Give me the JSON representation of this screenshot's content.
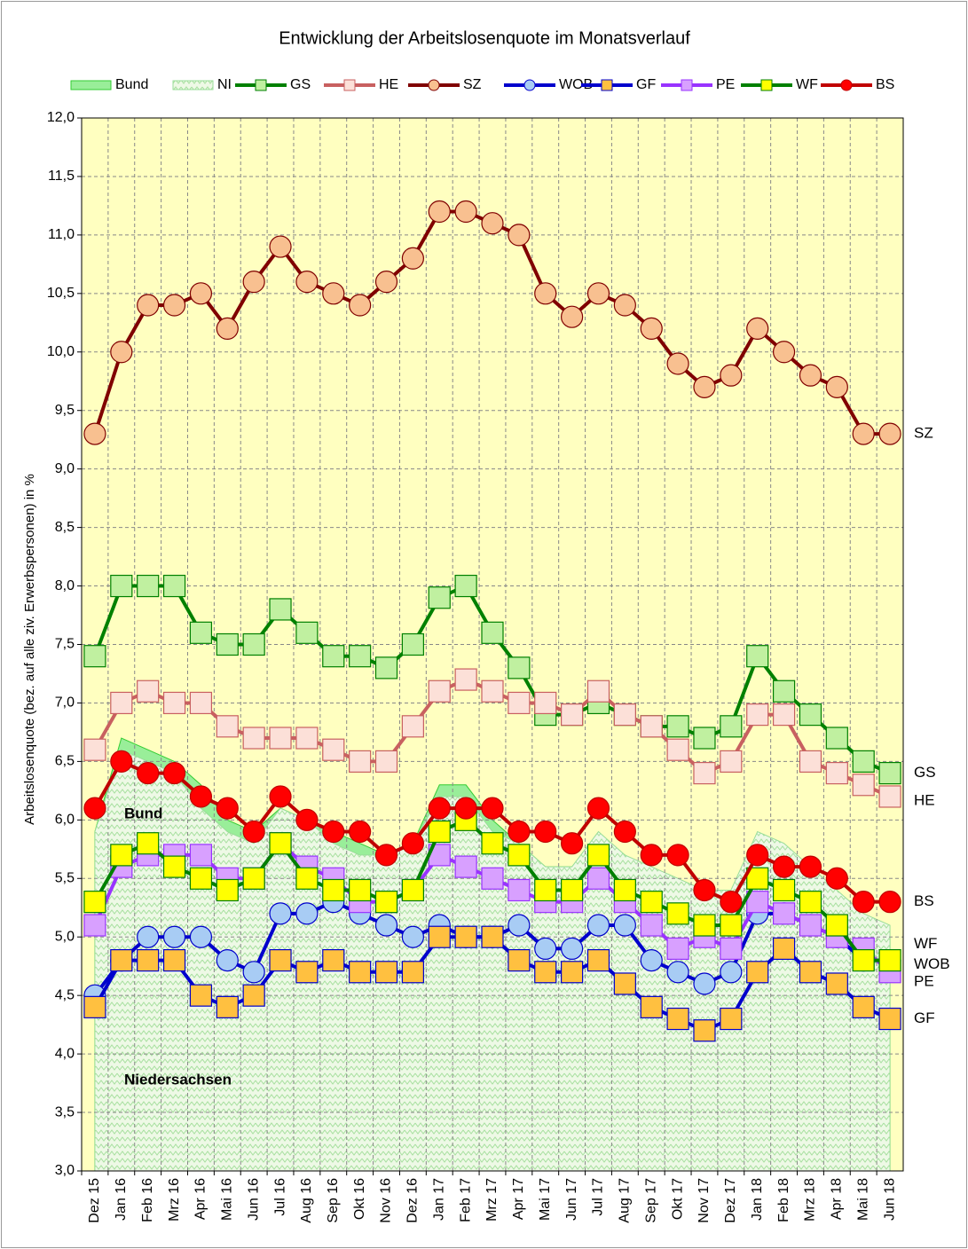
{
  "chart_data": {
    "type": "line",
    "title": "Entwicklung der Arbeitslosenquote im Monatsverlauf",
    "y_label": "Arbeitslosenquote (bez. auf alle ziv. Erwerbspersonen) in %",
    "annotations": [
      "Bund",
      "Niedersachsen"
    ],
    "categories": [
      "Dez 15",
      "Jan 16",
      "Feb 16",
      "Mrz 16",
      "Apr 16",
      "Mai 16",
      "Jun 16",
      "Jul 16",
      "Aug 16",
      "Sep 16",
      "Okt 16",
      "Nov 16",
      "Dez 16",
      "Jan 17",
      "Feb 17",
      "Mrz 17",
      "Apr 17",
      "Mai 17",
      "Jun 17",
      "Jul 17",
      "Aug 17",
      "Sep 17",
      "Okt 17",
      "Nov 17",
      "Dez 17",
      "Jan 18",
      "Feb 18",
      "Mrz 18",
      "Apr 18",
      "Mai 18",
      "Jun 18"
    ],
    "ylim": [
      3.0,
      12.0
    ],
    "yticks": [
      {
        "value": 3.0,
        "label": "3,0"
      },
      {
        "value": 3.5,
        "label": "3,5"
      },
      {
        "value": 4.0,
        "label": "4,0"
      },
      {
        "value": 4.5,
        "label": "4,5"
      },
      {
        "value": 5.0,
        "label": "5,0"
      },
      {
        "value": 5.5,
        "label": "5,5"
      },
      {
        "value": 6.0,
        "label": "6,0"
      },
      {
        "value": 6.5,
        "label": "6,5"
      },
      {
        "value": 7.0,
        "label": "7,0"
      },
      {
        "value": 7.5,
        "label": "7,5"
      },
      {
        "value": 8.0,
        "label": "8,0"
      },
      {
        "value": 8.5,
        "label": "8,5"
      },
      {
        "value": 9.0,
        "label": "9,0"
      },
      {
        "value": 9.5,
        "label": "9,5"
      },
      {
        "value": 10.0,
        "label": "10,0"
      },
      {
        "value": 10.5,
        "label": "10,5"
      },
      {
        "value": 11.0,
        "label": "11,0"
      },
      {
        "value": 11.5,
        "label": "11,5"
      },
      {
        "value": 12.0,
        "label": "12,0"
      }
    ],
    "grid": true,
    "series": [
      {
        "name": "Bund",
        "style": "area",
        "color": "#33cc33",
        "fill": "#99ee99",
        "values": [
          5.9,
          6.7,
          6.6,
          6.5,
          6.3,
          6.0,
          5.9,
          6.1,
          6.0,
          5.9,
          5.8,
          5.7,
          5.8,
          6.3,
          6.3,
          6.0,
          5.8,
          5.6,
          5.6,
          5.8,
          5.7,
          5.5,
          5.4,
          5.3,
          5.3,
          5.8,
          5.7,
          5.5,
          5.3,
          5.2,
          5.0
        ]
      },
      {
        "name": "NI",
        "style": "hatch",
        "color": "#99dd99",
        "fill": "#e8f8e0",
        "values": [
          5.9,
          6.6,
          6.5,
          6.4,
          6.1,
          5.9,
          5.8,
          6.1,
          6.0,
          5.8,
          5.7,
          5.7,
          5.8,
          6.2,
          6.2,
          5.9,
          5.8,
          5.6,
          5.6,
          5.9,
          5.7,
          5.6,
          5.5,
          5.4,
          5.4,
          5.9,
          5.8,
          5.6,
          5.4,
          5.2,
          5.1
        ]
      },
      {
        "name": "GS",
        "style": "line",
        "marker": "square",
        "color": "#008000",
        "marker_color": "#c0f0a0",
        "values": [
          7.4,
          8.0,
          8.0,
          8.0,
          7.6,
          7.5,
          7.5,
          7.8,
          7.6,
          7.4,
          7.4,
          7.3,
          7.5,
          7.9,
          8.0,
          7.6,
          7.3,
          6.9,
          6.9,
          7.0,
          6.9,
          6.8,
          6.8,
          6.7,
          6.8,
          7.4,
          7.1,
          6.9,
          6.7,
          6.5,
          6.4
        ]
      },
      {
        "name": "HE",
        "style": "line",
        "marker": "square",
        "color": "#c86060",
        "marker_color": "#fce0d8",
        "values": [
          6.6,
          7.0,
          7.1,
          7.0,
          7.0,
          6.8,
          6.7,
          6.7,
          6.7,
          6.6,
          6.5,
          6.5,
          6.8,
          7.1,
          7.2,
          7.1,
          7.0,
          7.0,
          6.9,
          7.1,
          6.9,
          6.8,
          6.6,
          6.4,
          6.5,
          6.9,
          6.9,
          6.5,
          6.4,
          6.3,
          6.2
        ]
      },
      {
        "name": "SZ",
        "style": "line",
        "marker": "circle",
        "color": "#800000",
        "marker_color": "#f8c090",
        "values": [
          9.3,
          10.0,
          10.4,
          10.4,
          10.5,
          10.2,
          10.6,
          10.9,
          10.6,
          10.5,
          10.4,
          10.6,
          10.8,
          11.2,
          11.2,
          11.1,
          11.0,
          10.5,
          10.3,
          10.5,
          10.4,
          10.2,
          9.9,
          9.7,
          9.8,
          10.2,
          10.0,
          9.8,
          9.7,
          9.3,
          9.3
        ]
      },
      {
        "name": "WOB",
        "style": "line",
        "marker": "circle",
        "color": "#0000cc",
        "marker_color": "#a8ccf4",
        "values": [
          4.5,
          4.8,
          5.0,
          5.0,
          5.0,
          4.8,
          4.7,
          5.2,
          5.2,
          5.3,
          5.2,
          5.1,
          5.0,
          5.1,
          5.0,
          5.0,
          5.1,
          4.9,
          4.9,
          5.1,
          5.1,
          4.8,
          4.7,
          4.6,
          4.7,
          5.2,
          5.2,
          5.1,
          5.0,
          4.8,
          4.8
        ]
      },
      {
        "name": "GF",
        "style": "line",
        "marker": "square",
        "color": "#0000cc",
        "marker_color": "#ffc040",
        "values": [
          4.4,
          4.8,
          4.8,
          4.8,
          4.5,
          4.4,
          4.5,
          4.8,
          4.7,
          4.8,
          4.7,
          4.7,
          4.7,
          5.0,
          5.0,
          5.0,
          4.8,
          4.7,
          4.7,
          4.8,
          4.6,
          4.4,
          4.3,
          4.2,
          4.3,
          4.7,
          4.9,
          4.7,
          4.6,
          4.4,
          4.3
        ]
      },
      {
        "name": "PE",
        "style": "line",
        "marker": "square",
        "color": "#9933ff",
        "marker_color": "#d8a0ff",
        "values": [
          5.1,
          5.6,
          5.7,
          5.7,
          5.7,
          5.5,
          5.5,
          5.8,
          5.6,
          5.5,
          5.3,
          5.3,
          5.4,
          5.7,
          5.6,
          5.5,
          5.4,
          5.3,
          5.3,
          5.5,
          5.3,
          5.1,
          4.9,
          5.0,
          4.9,
          5.3,
          5.2,
          5.1,
          5.0,
          4.9,
          4.7
        ]
      },
      {
        "name": "WF",
        "style": "line",
        "marker": "square",
        "color": "#008000",
        "marker_color": "#ffff00",
        "values": [
          5.3,
          5.7,
          5.8,
          5.6,
          5.5,
          5.4,
          5.5,
          5.8,
          5.5,
          5.4,
          5.4,
          5.3,
          5.4,
          5.9,
          6.0,
          5.8,
          5.7,
          5.4,
          5.4,
          5.7,
          5.4,
          5.3,
          5.2,
          5.1,
          5.1,
          5.5,
          5.4,
          5.3,
          5.1,
          4.8,
          4.8
        ]
      },
      {
        "name": "BS",
        "style": "line",
        "marker": "circle",
        "color": "#c00000",
        "marker_color": "#ff0000",
        "values": [
          6.1,
          6.5,
          6.4,
          6.4,
          6.2,
          6.1,
          5.9,
          6.2,
          6.0,
          5.9,
          5.9,
          5.7,
          5.8,
          6.1,
          6.1,
          6.1,
          5.9,
          5.9,
          5.8,
          6.1,
          5.9,
          5.7,
          5.7,
          5.4,
          5.3,
          5.7,
          5.6,
          5.6,
          5.5,
          5.3,
          5.3
        ]
      }
    ]
  }
}
